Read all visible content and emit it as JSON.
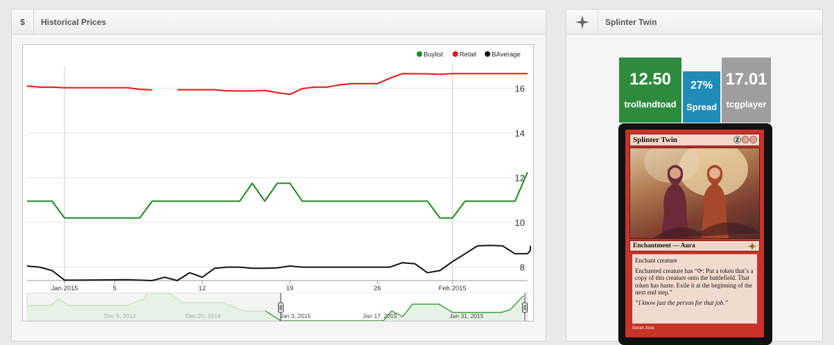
{
  "left_panel": {
    "icon": "$",
    "title": "Historical Prices"
  },
  "right_panel": {
    "icon_name": "card-symbol-icon",
    "title": "Splinter Twin"
  },
  "prices": {
    "buylist": {
      "value": "12.50",
      "label": "trollandtoad",
      "color": "#2e8b3e"
    },
    "spread": {
      "value": "27%",
      "label": "Spread",
      "color": "#1f8bb6"
    },
    "retail": {
      "value": "17.01",
      "label": "tcgplayer",
      "color": "#9e9e9e"
    }
  },
  "card": {
    "name": "Splinter Twin",
    "type_line": "Enchantment — Aura",
    "rules_1": "Enchant creature",
    "rules_2": "Enchanted creature has “⟳: Put a token that’s a copy of this creature onto the battlefield. That token has haste. Exile it at the beginning of the next end step.”",
    "flavor": "“I know just the person for that job.”",
    "artist": "Goran Josic"
  },
  "chart_data": {
    "type": "line",
    "legend": [
      {
        "name": "Buylist",
        "color": "#1a8a1a"
      },
      {
        "name": "Retail",
        "color": "#ee1111"
      },
      {
        "name": "BAverage",
        "color": "#111111"
      }
    ],
    "legend_position": "top-right",
    "y_ticks": [
      8,
      10,
      12,
      14,
      16
    ],
    "ylim": [
      7.4,
      17.0
    ],
    "x_ticks": [
      "Jan 2015",
      "5",
      "12",
      "19",
      "26",
      "Feb 2015"
    ],
    "x_tick_days": [
      1,
      5,
      12,
      19,
      26,
      32
    ],
    "xlim": [
      -2,
      38
    ],
    "series": [
      {
        "name": "Retail",
        "color": "#ee1111",
        "segments": [
          [
            [
              -2,
              16.1
            ],
            [
              -1,
              16.05
            ],
            [
              0,
              16.05
            ],
            [
              1,
              16.02
            ],
            [
              5,
              16.02
            ],
            [
              6,
              16.02
            ],
            [
              7,
              15.95
            ],
            [
              8,
              15.92
            ]
          ],
          [
            [
              10,
              15.93
            ],
            [
              13,
              15.93
            ],
            [
              14,
              15.88
            ],
            [
              16,
              15.88
            ],
            [
              17,
              15.9
            ],
            [
              18,
              15.8
            ],
            [
              19,
              15.72
            ],
            [
              20,
              15.98
            ],
            [
              21,
              16.05
            ],
            [
              22,
              16.05
            ],
            [
              23,
              16.15
            ],
            [
              24,
              16.2
            ],
            [
              25,
              16.2
            ],
            [
              26,
              16.2
            ],
            [
              27,
              16.45
            ],
            [
              28,
              16.65
            ],
            [
              30,
              16.64
            ],
            [
              31,
              16.62
            ],
            [
              32,
              16.65
            ],
            [
              38,
              16.65
            ]
          ]
        ]
      },
      {
        "name": "Buylist",
        "color": "#1a8a1a",
        "segments": [
          [
            [
              -2,
              10.95
            ],
            [
              0,
              10.95
            ],
            [
              1,
              10.2
            ],
            [
              7,
              10.2
            ],
            [
              8,
              10.95
            ],
            [
              15,
              10.95
            ],
            [
              16,
              11.75
            ],
            [
              17,
              10.95
            ],
            [
              18,
              11.75
            ],
            [
              19,
              11.75
            ],
            [
              20,
              10.95
            ],
            [
              27,
              10.95
            ],
            [
              30,
              10.95
            ],
            [
              31,
              10.2
            ],
            [
              32,
              10.2
            ],
            [
              33,
              10.95
            ],
            [
              37,
              10.95
            ],
            [
              38,
              12.25
            ]
          ]
        ]
      },
      {
        "name": "BAverage",
        "color": "#111111",
        "segments": [
          [
            [
              -2,
              8.05
            ],
            [
              -1,
              8.0
            ],
            [
              0,
              7.85
            ],
            [
              1,
              7.42
            ],
            [
              2,
              7.42
            ],
            [
              6,
              7.44
            ],
            [
              7,
              7.42
            ],
            [
              8,
              7.4
            ],
            [
              9,
              7.55
            ],
            [
              10,
              7.4
            ],
            [
              11,
              7.75
            ],
            [
              12,
              7.55
            ],
            [
              13,
              7.95
            ],
            [
              14,
              8.0
            ],
            [
              15,
              8.0
            ],
            [
              16,
              7.95
            ],
            [
              17,
              7.95
            ],
            [
              18,
              7.97
            ],
            [
              19,
              8.05
            ],
            [
              20,
              8.0
            ],
            [
              22,
              8.0
            ],
            [
              26,
              8.0
            ],
            [
              27,
              8.0
            ],
            [
              28,
              8.2
            ],
            [
              29,
              8.15
            ],
            [
              30,
              7.75
            ],
            [
              31,
              7.85
            ],
            [
              32,
              8.25
            ],
            [
              33,
              8.6
            ],
            [
              34,
              8.95
            ],
            [
              35,
              8.97
            ],
            [
              36,
              8.95
            ],
            [
              37,
              8.6
            ],
            [
              38,
              8.6
            ],
            [
              39,
              8.75
            ],
            [
              40,
              8.95
            ]
          ]
        ]
      }
    ],
    "navigator": {
      "labels": [
        "Dec 6, 2014",
        "Dec 20, 2014",
        "Jan 3, 2015",
        "Jan 17, 2015",
        "Jan 31, 2015"
      ]
    }
  }
}
